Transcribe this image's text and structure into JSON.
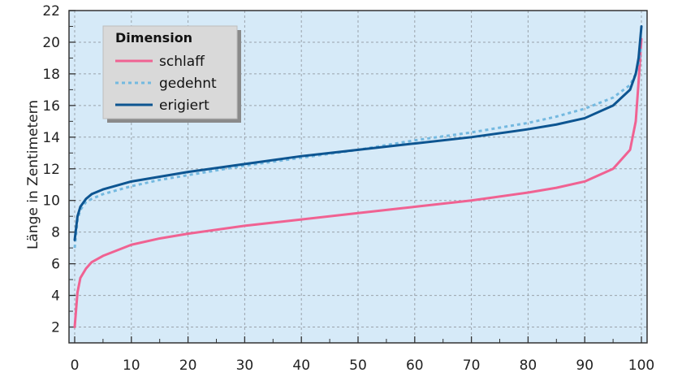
{
  "chart_data": {
    "type": "line",
    "title": "",
    "xlabel": "",
    "ylabel": "Länge in Zentimetern",
    "xlim": [
      -1,
      101
    ],
    "ylim": [
      1,
      22
    ],
    "x_ticks": [
      0,
      10,
      20,
      30,
      40,
      50,
      60,
      70,
      80,
      90,
      100
    ],
    "y_ticks": [
      2,
      4,
      6,
      8,
      10,
      12,
      14,
      16,
      18,
      20,
      22
    ],
    "grid": true,
    "legend": {
      "title": "Dimension",
      "position": "top-left"
    },
    "x": [
      0,
      0.5,
      1,
      2,
      3,
      5,
      10,
      15,
      20,
      30,
      40,
      50,
      60,
      70,
      80,
      85,
      90,
      95,
      98,
      99,
      99.5,
      100
    ],
    "series": [
      {
        "name": "schlaff",
        "color": "#f06292",
        "style": "solid",
        "values": [
          2.0,
          4.2,
          5.1,
          5.7,
          6.1,
          6.5,
          7.2,
          7.6,
          7.9,
          8.4,
          8.8,
          9.2,
          9.6,
          10.0,
          10.5,
          10.8,
          11.2,
          12.0,
          13.2,
          15.0,
          17.5,
          20.2
        ]
      },
      {
        "name": "gedehnt",
        "color": "#74b9e0",
        "style": "dotted",
        "values": [
          7.0,
          8.8,
          9.4,
          9.9,
          10.1,
          10.4,
          10.9,
          11.3,
          11.6,
          12.2,
          12.7,
          13.2,
          13.8,
          14.3,
          14.9,
          15.3,
          15.8,
          16.5,
          17.3,
          18.0,
          18.7,
          19.8
        ]
      },
      {
        "name": "erigiert",
        "color": "#0d5591",
        "style": "solid",
        "values": [
          7.5,
          9.0,
          9.6,
          10.1,
          10.4,
          10.7,
          11.2,
          11.5,
          11.8,
          12.3,
          12.8,
          13.2,
          13.6,
          14.0,
          14.5,
          14.8,
          15.2,
          16.0,
          17.0,
          18.0,
          19.0,
          21.0
        ]
      }
    ]
  },
  "colors": {
    "plot_background": "#d6eaf8",
    "grid": "#9aa3ab",
    "legend_background": "#d9d9d9"
  }
}
